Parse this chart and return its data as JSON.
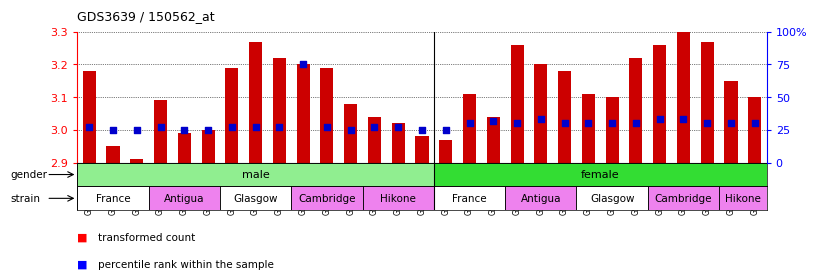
{
  "title": "GDS3639 / 150562_at",
  "samples": [
    "GSM231205",
    "GSM231206",
    "GSM231207",
    "GSM231211",
    "GSM231212",
    "GSM231213",
    "GSM231217",
    "GSM231218",
    "GSM231219",
    "GSM231223",
    "GSM231224",
    "GSM231225",
    "GSM231229",
    "GSM231230",
    "GSM231231",
    "GSM231208",
    "GSM231209",
    "GSM231210",
    "GSM231214",
    "GSM231215",
    "GSM231216",
    "GSM231220",
    "GSM231221",
    "GSM231222",
    "GSM231226",
    "GSM231227",
    "GSM231228",
    "GSM231232",
    "GSM231233"
  ],
  "bar_values": [
    3.18,
    2.95,
    2.91,
    3.09,
    2.99,
    3.0,
    3.19,
    3.27,
    3.22,
    3.2,
    3.19,
    3.08,
    3.04,
    3.02,
    2.98,
    2.97,
    3.11,
    3.04,
    3.26,
    3.2,
    3.18,
    3.11,
    3.1,
    3.22,
    3.26,
    3.3,
    3.27,
    3.15,
    3.1
  ],
  "percentile_pct": [
    27,
    25,
    25,
    27,
    25,
    25,
    27,
    27,
    27,
    75,
    27,
    25,
    27,
    27,
    25,
    25,
    30,
    32,
    30,
    33,
    30,
    30,
    30,
    30,
    33,
    33,
    30,
    30,
    30
  ],
  "gender_groups": [
    {
      "label": "male",
      "start": 0,
      "end": 15,
      "color": "#90ee90"
    },
    {
      "label": "female",
      "start": 15,
      "end": 29,
      "color": "#33dd33"
    }
  ],
  "strain_groups": [
    {
      "label": "France",
      "start": 0,
      "end": 3,
      "color": "#ffffff"
    },
    {
      "label": "Antigua",
      "start": 3,
      "end": 6,
      "color": "#ee82ee"
    },
    {
      "label": "Glasgow",
      "start": 6,
      "end": 9,
      "color": "#ffffff"
    },
    {
      "label": "Cambridge",
      "start": 9,
      "end": 12,
      "color": "#ee82ee"
    },
    {
      "label": "Hikone",
      "start": 12,
      "end": 15,
      "color": "#ee82ee"
    },
    {
      "label": "France",
      "start": 15,
      "end": 18,
      "color": "#ffffff"
    },
    {
      "label": "Antigua",
      "start": 18,
      "end": 21,
      "color": "#ee82ee"
    },
    {
      "label": "Glasgow",
      "start": 21,
      "end": 24,
      "color": "#ffffff"
    },
    {
      "label": "Cambridge",
      "start": 24,
      "end": 27,
      "color": "#ee82ee"
    },
    {
      "label": "Hikone",
      "start": 27,
      "end": 29,
      "color": "#ee82ee"
    }
  ],
  "ylim_min": 2.9,
  "ylim_max": 3.3,
  "yticks": [
    2.9,
    3.0,
    3.1,
    3.2,
    3.3
  ],
  "right_ytick_pcts": [
    0,
    25,
    50,
    75,
    100
  ],
  "right_ytick_labels": [
    "0",
    "25",
    "50",
    "75",
    "100%"
  ],
  "bar_color": "#cc0000",
  "dot_color": "#0000cc",
  "background_color": "#ffffff",
  "bar_width": 0.55,
  "male_female_sep": 14.5,
  "n_total": 29
}
